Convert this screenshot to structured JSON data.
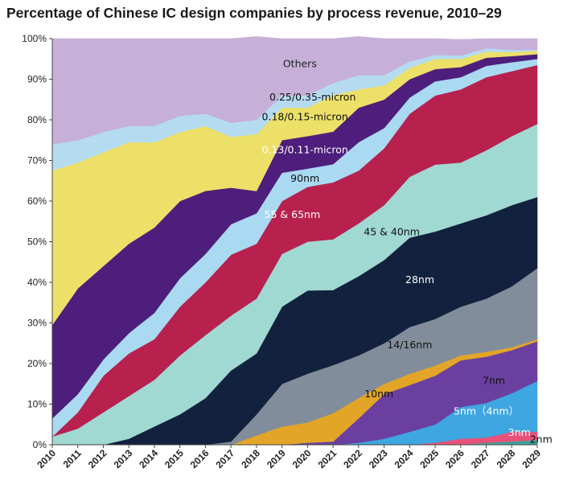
{
  "chart_data": {
    "type": "area",
    "stacked": true,
    "percent_stacked": true,
    "title": "Percentage of Chinese IC design companies by process revenue, 2010–29",
    "xlabel": "",
    "ylabel": "",
    "x": [
      "2010",
      "2011",
      "2012",
      "2013",
      "2014",
      "2015",
      "2016",
      "2017",
      "2018",
      "2019",
      "2020",
      "2021",
      "2022",
      "2023",
      "2024",
      "2025",
      "2026",
      "2027",
      "2028",
      "2029"
    ],
    "y_ticks": [
      "0%",
      "10%",
      "20%",
      "30%",
      "40%",
      "50%",
      "60%",
      "70%",
      "80%",
      "90%",
      "100%"
    ],
    "ylim": [
      0,
      100
    ],
    "grid": false,
    "legend": "none",
    "series": [
      {
        "name": "2nm",
        "color": "#3aa39a",
        "values": [
          0,
          0,
          0,
          0,
          0,
          0,
          0,
          0,
          0,
          0,
          0,
          0,
          0,
          0,
          0,
          0,
          0,
          0.5,
          0.8,
          1.2
        ]
      },
      {
        "name": "3nm",
        "color": "#e8527a",
        "values": [
          0,
          0,
          0,
          0,
          0,
          0,
          0,
          0,
          0,
          0,
          0,
          0,
          0,
          0,
          0,
          0.5,
          1.5,
          1.3,
          2.4,
          2.0
        ]
      },
      {
        "name": "5nm (4nm)",
        "color": "#3ea6e0",
        "values": [
          0,
          0,
          0,
          0,
          0,
          0,
          0,
          0,
          0,
          0,
          0,
          0,
          0.5,
          1.5,
          3.2,
          4.5,
          7.8,
          8.5,
          9.5,
          12.5
        ]
      },
      {
        "name": "7nm",
        "color": "#6b3fa0",
        "values": [
          0,
          0,
          0,
          0,
          0,
          0,
          0,
          0,
          0,
          0,
          0.5,
          0.8,
          6.0,
          11.0,
          11.5,
          12.0,
          11.5,
          11.4,
          10.6,
          9.8
        ]
      },
      {
        "name": "10nm",
        "color": "#e2a527",
        "values": [
          0,
          0,
          0,
          0,
          0,
          0,
          0,
          0,
          2.3,
          4.5,
          5.0,
          7.0,
          5.0,
          2.5,
          2.8,
          2.5,
          1.2,
          1.2,
          0.7,
          0.5
        ]
      },
      {
        "name": "14/16nm",
        "color": "#818d9b",
        "values": [
          0,
          0,
          0,
          0,
          0,
          0,
          0,
          0.8,
          5.2,
          10.5,
          12.0,
          11.8,
          10.5,
          10.0,
          11.5,
          11.5,
          12.0,
          13.1,
          15.0,
          17.5
        ]
      },
      {
        "name": "28nm",
        "color": "#12213d",
        "values": [
          0,
          0,
          0,
          1.5,
          4.5,
          7.5,
          11.5,
          17.5,
          15.0,
          19.0,
          20.5,
          18.5,
          19.5,
          20.5,
          22.0,
          21.5,
          20.5,
          20.5,
          20.0,
          17.5
        ]
      },
      {
        "name": "45 & 40nm",
        "color": "#a0d8d2",
        "values": [
          2.0,
          4.0,
          8.0,
          10.5,
          11.5,
          14.5,
          15.5,
          13.5,
          13.5,
          13.0,
          12.0,
          12.5,
          13.0,
          13.5,
          15.0,
          16.5,
          15.0,
          16.0,
          17.0,
          18.0
        ]
      },
      {
        "name": "55 & 65nm",
        "color": "#b8214e",
        "values": [
          0,
          4.0,
          9.0,
          10.5,
          10.0,
          12.0,
          13.0,
          15.0,
          13.5,
          13.0,
          13.5,
          14.0,
          13.0,
          14.0,
          15.5,
          17.0,
          18.0,
          18.0,
          16.0,
          14.5
        ]
      },
      {
        "name": "90nm",
        "color": "#aad9f2",
        "values": [
          4.5,
          4.5,
          4.0,
          5.0,
          6.5,
          7.0,
          7.0,
          7.5,
          7.5,
          7.0,
          4.5,
          4.5,
          7.0,
          5.0,
          4.0,
          3.5,
          3.0,
          2.8,
          2.2,
          1.5
        ]
      },
      {
        "name": "0.13/0.11-micron",
        "color": "#4e1e7c",
        "values": [
          23.0,
          26.0,
          23.0,
          22.0,
          21.0,
          19.0,
          15.5,
          9.0,
          5.5,
          8.0,
          8.0,
          8.0,
          8.5,
          7.0,
          4.5,
          3.0,
          2.5,
          2.0,
          1.5,
          1.2
        ]
      },
      {
        "name": "0.18/0.15-micron",
        "color": "#ece068",
        "values": [
          38.0,
          31.0,
          28.0,
          25.0,
          21.0,
          17.0,
          16.0,
          12.5,
          14.0,
          8.0,
          7.0,
          9.0,
          4.5,
          3.5,
          2.8,
          2.5,
          2.0,
          1.5,
          1.0,
          0.8
        ]
      },
      {
        "name": "0.25/0.35-micron",
        "color": "#b5dbf1",
        "values": [
          6.5,
          5.5,
          5.0,
          4.0,
          4.0,
          4.0,
          3.0,
          3.5,
          3.5,
          3.0,
          3.0,
          3.0,
          3.5,
          2.5,
          1.6,
          1.0,
          0.8,
          0.8,
          0.5,
          0.3
        ]
      },
      {
        "name": "Others",
        "color": "#c6b0d8",
        "values": [
          26.0,
          25.0,
          23.0,
          21.5,
          21.5,
          19.0,
          18.5,
          20.7,
          20.5,
          14.0,
          14.0,
          10.9,
          9.5,
          9.0,
          5.6,
          4.0,
          4.0,
          2.4,
          2.8,
          2.7
        ]
      }
    ],
    "annotations": [
      {
        "text": "Others",
        "x": 2019.7,
        "y": 93.0,
        "color": "#222222"
      },
      {
        "text": "0.25/0.35-micron",
        "x": 2020.2,
        "y": 84.8,
        "color": "#111111"
      },
      {
        "text": "0.18/0.15-micron",
        "x": 2019.9,
        "y": 79.9,
        "color": "#111111"
      },
      {
        "text": "0.13/0.11-micron",
        "x": 2019.9,
        "y": 71.8,
        "color": "#ffffff"
      },
      {
        "text": "90nm",
        "x": 2019.9,
        "y": 64.8,
        "color": "#111111"
      },
      {
        "text": "55 & 65nm",
        "x": 2019.4,
        "y": 55.8,
        "color": "#ffffff"
      },
      {
        "text": "45 & 40nm",
        "x": 2023.3,
        "y": 51.6,
        "color": "#111111"
      },
      {
        "text": "28nm",
        "x": 2024.4,
        "y": 39.8,
        "color": "#ffffff"
      },
      {
        "text": "14/16nm",
        "x": 2024.0,
        "y": 23.8,
        "color": "#111111"
      },
      {
        "text": "10nm",
        "x": 2022.8,
        "y": 11.7,
        "color": "#111111"
      },
      {
        "text": "7nm",
        "x": 2027.3,
        "y": 15.0,
        "color": "#111111"
      },
      {
        "text": "5nm（4nm）",
        "x": 2027.0,
        "y": 7.4,
        "color": "#ffffff"
      },
      {
        "text": "3nm",
        "x": 2028.3,
        "y": 2.2,
        "color": "#ffffff"
      },
      {
        "text": "2nm",
        "x": 2029.15,
        "y": 0.5,
        "color": "#111111"
      }
    ]
  }
}
